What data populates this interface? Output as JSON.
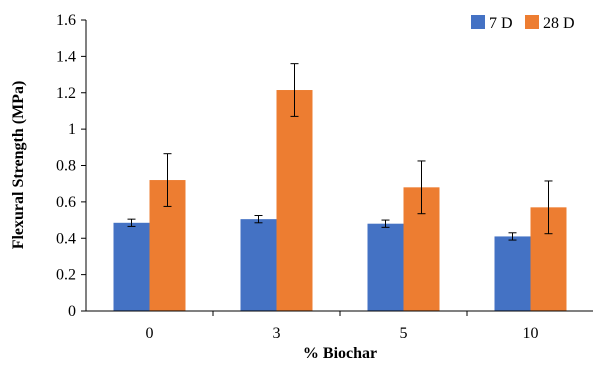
{
  "chart_data": {
    "type": "bar",
    "categories": [
      "0",
      "3",
      "5",
      "10"
    ],
    "series": [
      {
        "name": "7 D",
        "color": "#4472C4",
        "values": [
          0.485,
          0.505,
          0.48,
          0.41
        ],
        "errors": [
          0.02,
          0.02,
          0.02,
          0.02
        ]
      },
      {
        "name": "28 D",
        "color": "#ED7D31",
        "values": [
          0.72,
          1.215,
          0.68,
          0.57
        ],
        "errors": [
          0.145,
          0.145,
          0.145,
          0.145
        ]
      }
    ],
    "xlabel": "% Biochar",
    "ylabel": "Flexural Strength (MPa)",
    "ylim": [
      0,
      1.6
    ],
    "yticks": [
      "0",
      "0.2",
      "0.4",
      "0.6",
      "0.8",
      "1",
      "1.2",
      "1.4",
      "1.6"
    ],
    "grid": false,
    "legend_position": "top-right"
  }
}
